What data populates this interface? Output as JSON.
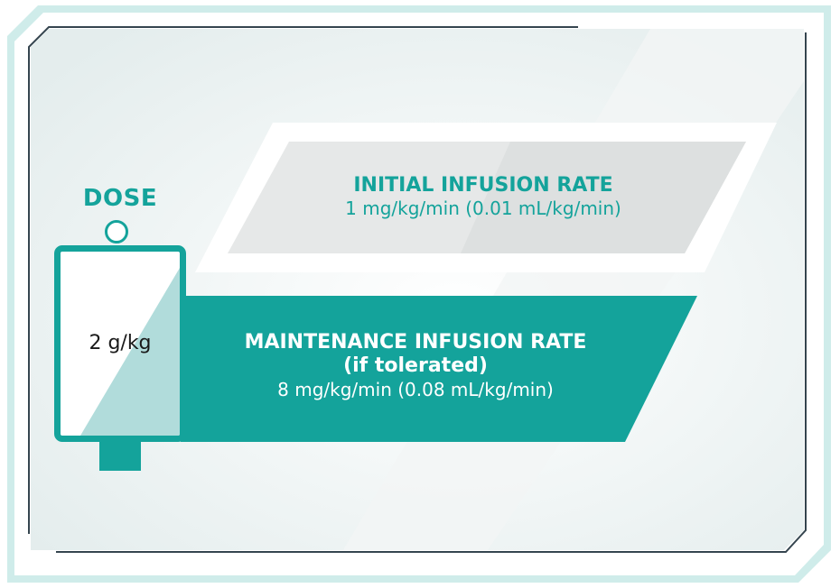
{
  "dose": {
    "title": "DOSE",
    "value": "2 g/kg"
  },
  "initial_rate": {
    "title": "INITIAL INFUSION RATE",
    "rate": "1 mg/kg/min (0.01 mL/kg/min)"
  },
  "maintenance_rate": {
    "title": "MAINTENANCE INFUSION RATE",
    "condition": "(if tolerated)",
    "rate": "8 mg/kg/min (0.08 mL/kg/min)"
  },
  "colors": {
    "teal": "#14a39b",
    "light_teal": "#b1dcdb",
    "panel_grey": "#e9ebeb",
    "frame_mint": "#cfecea"
  }
}
